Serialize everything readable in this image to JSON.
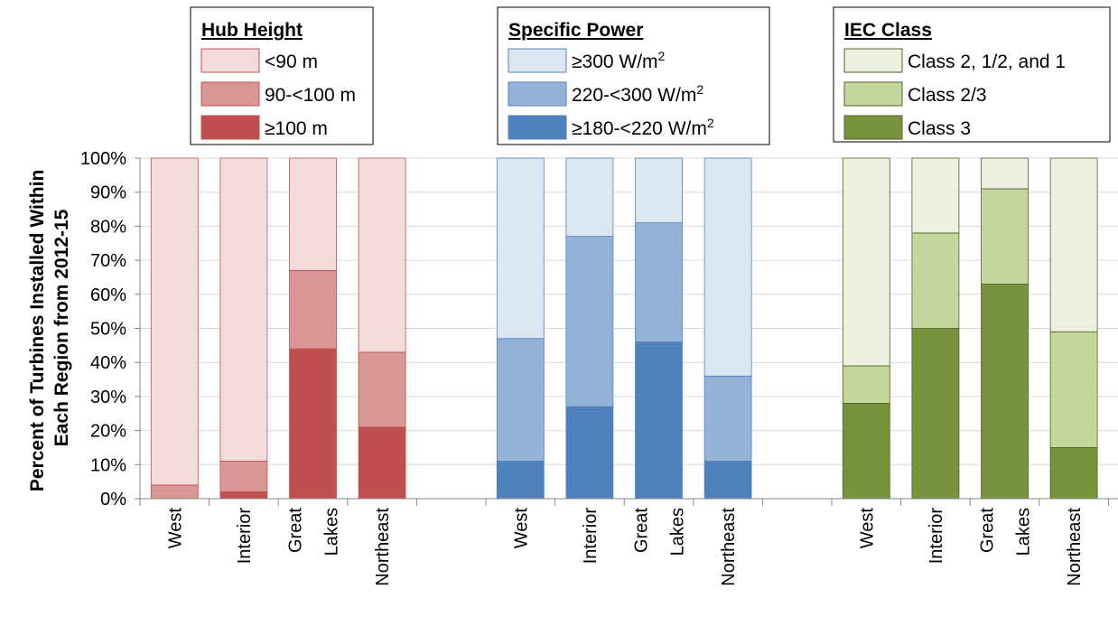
{
  "chart_data": {
    "type": "bar",
    "stacked": true,
    "ylabel_lines": [
      "Percent of Turbines Installed Within",
      "Each Region from 2012-15"
    ],
    "ylim": [
      0,
      100
    ],
    "yticks": [
      "0%",
      "10%",
      "20%",
      "30%",
      "40%",
      "50%",
      "60%",
      "70%",
      "80%",
      "90%",
      "100%"
    ],
    "grid": true,
    "groups": [
      {
        "legend_title": "Hub Height",
        "categories": [
          "West",
          "Interior",
          "Great Lakes",
          "Northeast"
        ],
        "category_lines": [
          [
            "West"
          ],
          [
            "Interior"
          ],
          [
            "Great",
            "Lakes"
          ],
          [
            "Northeast"
          ]
        ],
        "series": [
          {
            "name": "≥100 m",
            "legend_name": "≥100 m",
            "color": "#c0504d",
            "values": [
              0,
              2,
              44,
              21
            ]
          },
          {
            "name": "90-<100 m",
            "legend_name": "90-<100 m",
            "color": "#da9694",
            "values": [
              4,
              9,
              23,
              22
            ]
          },
          {
            "name": "<90 m",
            "legend_name": "<90 m",
            "color": "#f2dcdb",
            "values": [
              96,
              89,
              33,
              57
            ]
          }
        ],
        "border_color": "#c0504d"
      },
      {
        "legend_title": "Specific Power",
        "categories": [
          "West",
          "Interior",
          "Great Lakes",
          "Northeast"
        ],
        "category_lines": [
          [
            "West"
          ],
          [
            "Interior"
          ],
          [
            "Great",
            "Lakes"
          ],
          [
            "Northeast"
          ]
        ],
        "series": [
          {
            "name": "≥180-<220 W/m2",
            "legend_name": "≥180-<220 W/m",
            "color": "#4f81bd",
            "values": [
              11,
              27,
              46,
              11
            ]
          },
          {
            "name": "220-<300 W/m2",
            "legend_name": "220-<300 W/m",
            "color": "#95b3d7",
            "values": [
              36,
              50,
              35,
              25
            ]
          },
          {
            "name": "≥300 W/m2",
            "legend_name": "≥300 W/m",
            "color": "#dce6f1",
            "values": [
              53,
              23,
              19,
              64
            ]
          }
        ],
        "border_color": "#4f81bd",
        "legend_superscript": "2"
      },
      {
        "legend_title": "IEC Class",
        "categories": [
          "West",
          "Interior",
          "Great Lakes",
          "Northeast"
        ],
        "category_lines": [
          [
            "West"
          ],
          [
            "Interior"
          ],
          [
            "Great",
            "Lakes"
          ],
          [
            "Northeast"
          ]
        ],
        "series": [
          {
            "name": "Class 3",
            "legend_name": "Class 3",
            "color": "#77933c",
            "values": [
              28,
              50,
              63,
              15
            ]
          },
          {
            "name": "Class 2/3",
            "legend_name": "Class 2/3",
            "color": "#c3d69b",
            "values": [
              11,
              28,
              28,
              34
            ]
          },
          {
            "name": "Class 2, 1/2, and 1",
            "legend_name": "Class 2, 1/2, and 1",
            "color": "#ebf1de",
            "values": [
              61,
              22,
              9,
              51
            ]
          }
        ],
        "border_color": "#4f6228"
      }
    ]
  }
}
